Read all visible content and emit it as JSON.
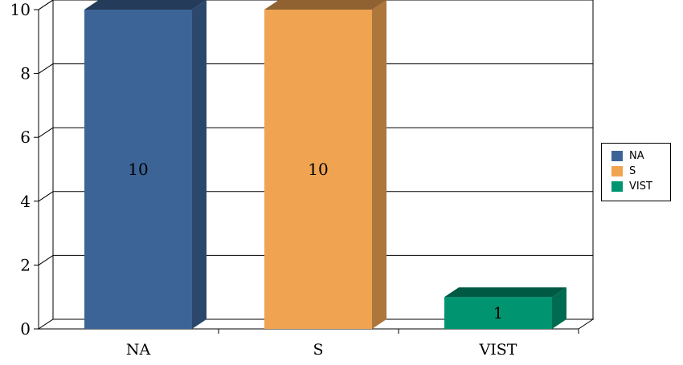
{
  "chart_data": {
    "type": "bar",
    "title": "",
    "xlabel": "",
    "ylabel": "",
    "categories": [
      "NA",
      "S",
      "VIST"
    ],
    "values": [
      10,
      10,
      1
    ],
    "data_labels": [
      "10",
      "10",
      "1"
    ],
    "colors": [
      "#3c6496",
      "#f0a452",
      "#009470"
    ],
    "yticks": [
      "0",
      "2",
      "4",
      "6",
      "8",
      "10"
    ],
    "ylim": [
      0,
      10
    ],
    "grid": true,
    "three_d": true,
    "legend": {
      "placement": "right",
      "entries": [
        "NA",
        "S",
        "VIST"
      ]
    }
  }
}
